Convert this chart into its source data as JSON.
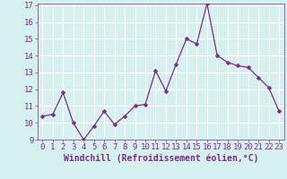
{
  "x": [
    0,
    1,
    2,
    3,
    4,
    5,
    6,
    7,
    8,
    9,
    10,
    11,
    12,
    13,
    14,
    15,
    16,
    17,
    18,
    19,
    20,
    21,
    22,
    23
  ],
  "y": [
    10.4,
    10.5,
    11.8,
    10.0,
    9.0,
    9.8,
    10.7,
    9.9,
    10.4,
    11.0,
    11.1,
    13.1,
    11.9,
    13.5,
    15.0,
    14.7,
    17.1,
    14.0,
    13.6,
    13.4,
    13.3,
    12.7,
    12.1,
    10.7
  ],
  "line_color": "#7b2d8b",
  "marker_color": "#7b2d8b",
  "bg_color": "#d6f0f0",
  "grid_color": "#ffffff",
  "xlabel": "Windchill (Refroidissement éolien,°C)",
  "xlabel_color": "#7b2d8b",
  "tick_color": "#7b2d8b",
  "ylim": [
    9,
    17
  ],
  "xlim": [
    -0.5,
    23.5
  ],
  "yticks": [
    9,
    10,
    11,
    12,
    13,
    14,
    15,
    16,
    17
  ],
  "xticks": [
    0,
    1,
    2,
    3,
    4,
    5,
    6,
    7,
    8,
    9,
    10,
    11,
    12,
    13,
    14,
    15,
    16,
    17,
    18,
    19,
    20,
    21,
    22,
    23
  ],
  "tick_fontsize": 6.5,
  "xlabel_fontsize": 7,
  "line_width": 0.9,
  "marker_size": 2.5
}
